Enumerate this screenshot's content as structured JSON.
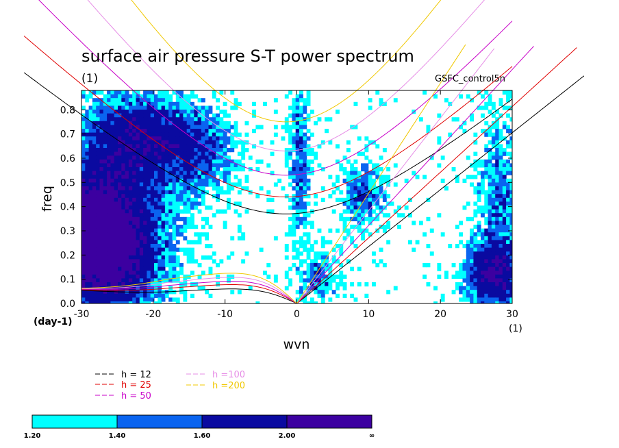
{
  "chart_data": {
    "type": "heatmap",
    "title": "surface air pressure S-T power spectrum",
    "subtitle": "(1)",
    "run_label": "GSFC_control5n",
    "xlabel": "wvn",
    "ylabel": "freq",
    "x_unit": "(1)",
    "y_unit": "(day-1)",
    "xlim": [
      -30,
      30
    ],
    "ylim": [
      0,
      0.88
    ],
    "x_ticks": [
      "-30",
      "-20",
      "-10",
      "0",
      "10",
      "20",
      "30"
    ],
    "x_tick_values": [
      -30,
      -20,
      -10,
      0,
      10,
      20,
      30
    ],
    "y_ticks": [
      "0.0",
      "0.1",
      "0.2",
      "0.3",
      "0.4",
      "0.5",
      "0.6",
      "0.7",
      "0.8"
    ],
    "y_tick_values": [
      0,
      0.1,
      0.2,
      0.3,
      0.4,
      0.5,
      0.6,
      0.7,
      0.8
    ],
    "dispersion_curves": [
      {
        "name": "h = 12",
        "color": "#000000"
      },
      {
        "name": "h = 25",
        "color": "#e00000"
      },
      {
        "name": "h = 50",
        "color": "#c800c8"
      },
      {
        "name": "h =100",
        "color": "#e68ce6"
      },
      {
        "name": "h =200",
        "color": "#f0c800"
      }
    ],
    "kelvin_slopes": [
      0.0235,
      0.0271,
      0.0322,
      0.0383,
      0.0455
    ],
    "inertia_gravity_min_freq": [
      0.37,
      0.44,
      0.53,
      0.63,
      0.75
    ],
    "rossby_max_freq": [
      0.06,
      0.078,
      0.092,
      0.108,
      0.125
    ],
    "rossby_freq_at_minus30": [
      0.055,
      0.057,
      0.059,
      0.061,
      0.063
    ],
    "colorbar": {
      "labels": [
        "1.20",
        "1.40",
        "1.60",
        "2.00",
        "∞"
      ],
      "colors": [
        "#00ffff",
        "#0a64f0",
        "#0a0aa0",
        "#3c00a0"
      ]
    },
    "regions_note": "power ratio levels 1.2 (cyan), 1.4 (blue), 1.6 (navy), 2.0+ (purple)"
  }
}
